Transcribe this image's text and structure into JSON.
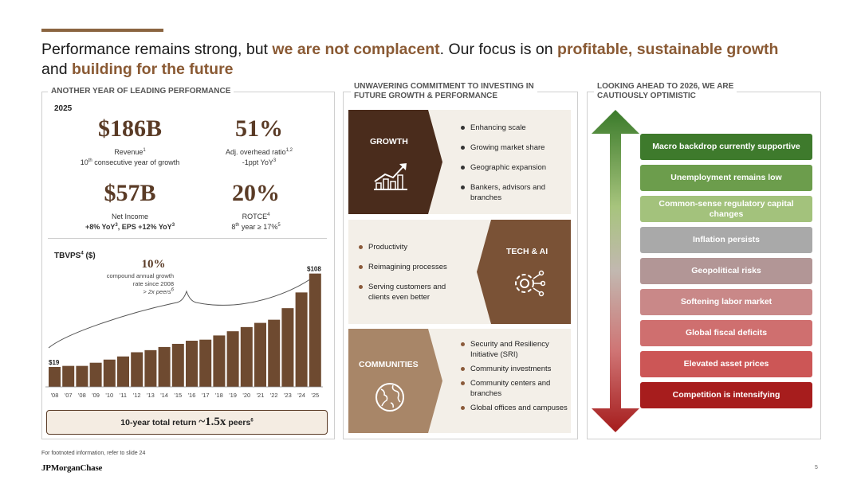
{
  "headline": {
    "p1": "Performance remains strong, but ",
    "h1": "we are not complacent",
    "p2": ". Our focus is on ",
    "h2": "profitable, sustainable growth",
    "p3": " and ",
    "h3": "building for the future"
  },
  "panel1": {
    "title": "ANOTHER YEAR OF LEADING PERFORMANCE",
    "year": "2025",
    "kpis": [
      {
        "value": "$186B",
        "label": "Revenue",
        "label_sup": "1",
        "sub_pre": "10",
        "sub_pre_sup": "th",
        "sub": " consecutive year of growth"
      },
      {
        "value": "51%",
        "label": "Adj. overhead ratio",
        "label_sup": "1,2",
        "sub": "-1ppt YoY",
        "sub_sup": "3"
      },
      {
        "value": "$57B",
        "label": "Net Income",
        "sub_bold": "+8% YoY",
        "sub_bold_sup": "3",
        "sub_bold2": ", EPS +12% YoY",
        "sub_bold2_sup": "3"
      },
      {
        "value": "20%",
        "label": "ROTCE",
        "label_sup": "4",
        "sub_pre": "8",
        "sub_pre_sup": "th",
        "sub": " year ≥ 17%",
        "sub_sup": "5"
      }
    ],
    "tbvps_title": "TBVPS",
    "tbvps_sup": "4",
    "tbvps_unit": " ($)",
    "cagr_value": "10%",
    "cagr_note_1": "compound annual growth",
    "cagr_note_2": "rate since 2008",
    "cagr_note_3": "> 2x peers",
    "cagr_note_3_sup": "6",
    "return_pre": "10-year total return ",
    "return_big": "~1.5x",
    "return_post": " peers",
    "return_sup": "6"
  },
  "chart_data": {
    "type": "bar",
    "categories": [
      "'08",
      "'07",
      "'08",
      "'09",
      "'10",
      "'11",
      "'12",
      "'13",
      "'14",
      "'15",
      "'16",
      "'17",
      "'18",
      "'19",
      "'20",
      "'21",
      "'22",
      "'23",
      "'24",
      "'25"
    ],
    "values": [
      19,
      20,
      20,
      23,
      26,
      29,
      33,
      35,
      38,
      41,
      44,
      45,
      49,
      53,
      57,
      61,
      64,
      75,
      90,
      108
    ],
    "data_labels": {
      "first": "$19",
      "last": "$108"
    },
    "ylim": [
      0,
      110
    ],
    "color": "#6e4a30",
    "grid": false
  },
  "panel2": {
    "title_1": "UNWAVERING COMMITMENT TO INVESTING IN",
    "title_2": "FUTURE GROWTH & PERFORMANCE",
    "rows": [
      {
        "label": "GROWTH",
        "color": "#4a2c1c",
        "icon": "growth-chart-icon",
        "bullets": [
          "Enhancing scale",
          "Growing market share",
          "Geographic expansion",
          "Bankers, advisors and branches"
        ]
      },
      {
        "label": "TECH & AI",
        "color": "#7a5236",
        "icon": "gear-circuit-icon",
        "bullets": [
          "Productivity",
          "Reimagining processes",
          "Serving customers and clients even better"
        ]
      },
      {
        "label": "COMMUNITIES",
        "color": "#a88668",
        "icon": "globe-icon",
        "bullets": [
          "Security and Resiliency Initiative (SRI)",
          "Community investments",
          "Community centers and branches",
          "Global offices and campuses"
        ]
      }
    ]
  },
  "panel3": {
    "title_1": "LOOKING AHEAD TO 2026, WE ARE",
    "title_2": "CAUTIOUSLY OPTIMISTIC",
    "items": [
      {
        "label": "Macro backdrop currently supportive",
        "color": "#3e7a2c"
      },
      {
        "label": "Unemployment remains low",
        "color": "#6c9d4c"
      },
      {
        "label": "Common-sense regulatory capital changes",
        "color": "#a3c27c"
      },
      {
        "label": "Inflation persists",
        "color": "#a9a9a9"
      },
      {
        "label": "Geopolitical risks",
        "color": "#b29696"
      },
      {
        "label": "Softening labor market",
        "color": "#c98888"
      },
      {
        "label": "Global fiscal deficits",
        "color": "#cf6f6f"
      },
      {
        "label": "Elevated asset prices",
        "color": "#cc5656"
      },
      {
        "label": "Competition is intensifying",
        "color": "#a71d1d"
      }
    ]
  },
  "footer": {
    "footnote": "For footnoted information, refer to slide 24",
    "logo": "JPMorganChase",
    "page": "5"
  }
}
